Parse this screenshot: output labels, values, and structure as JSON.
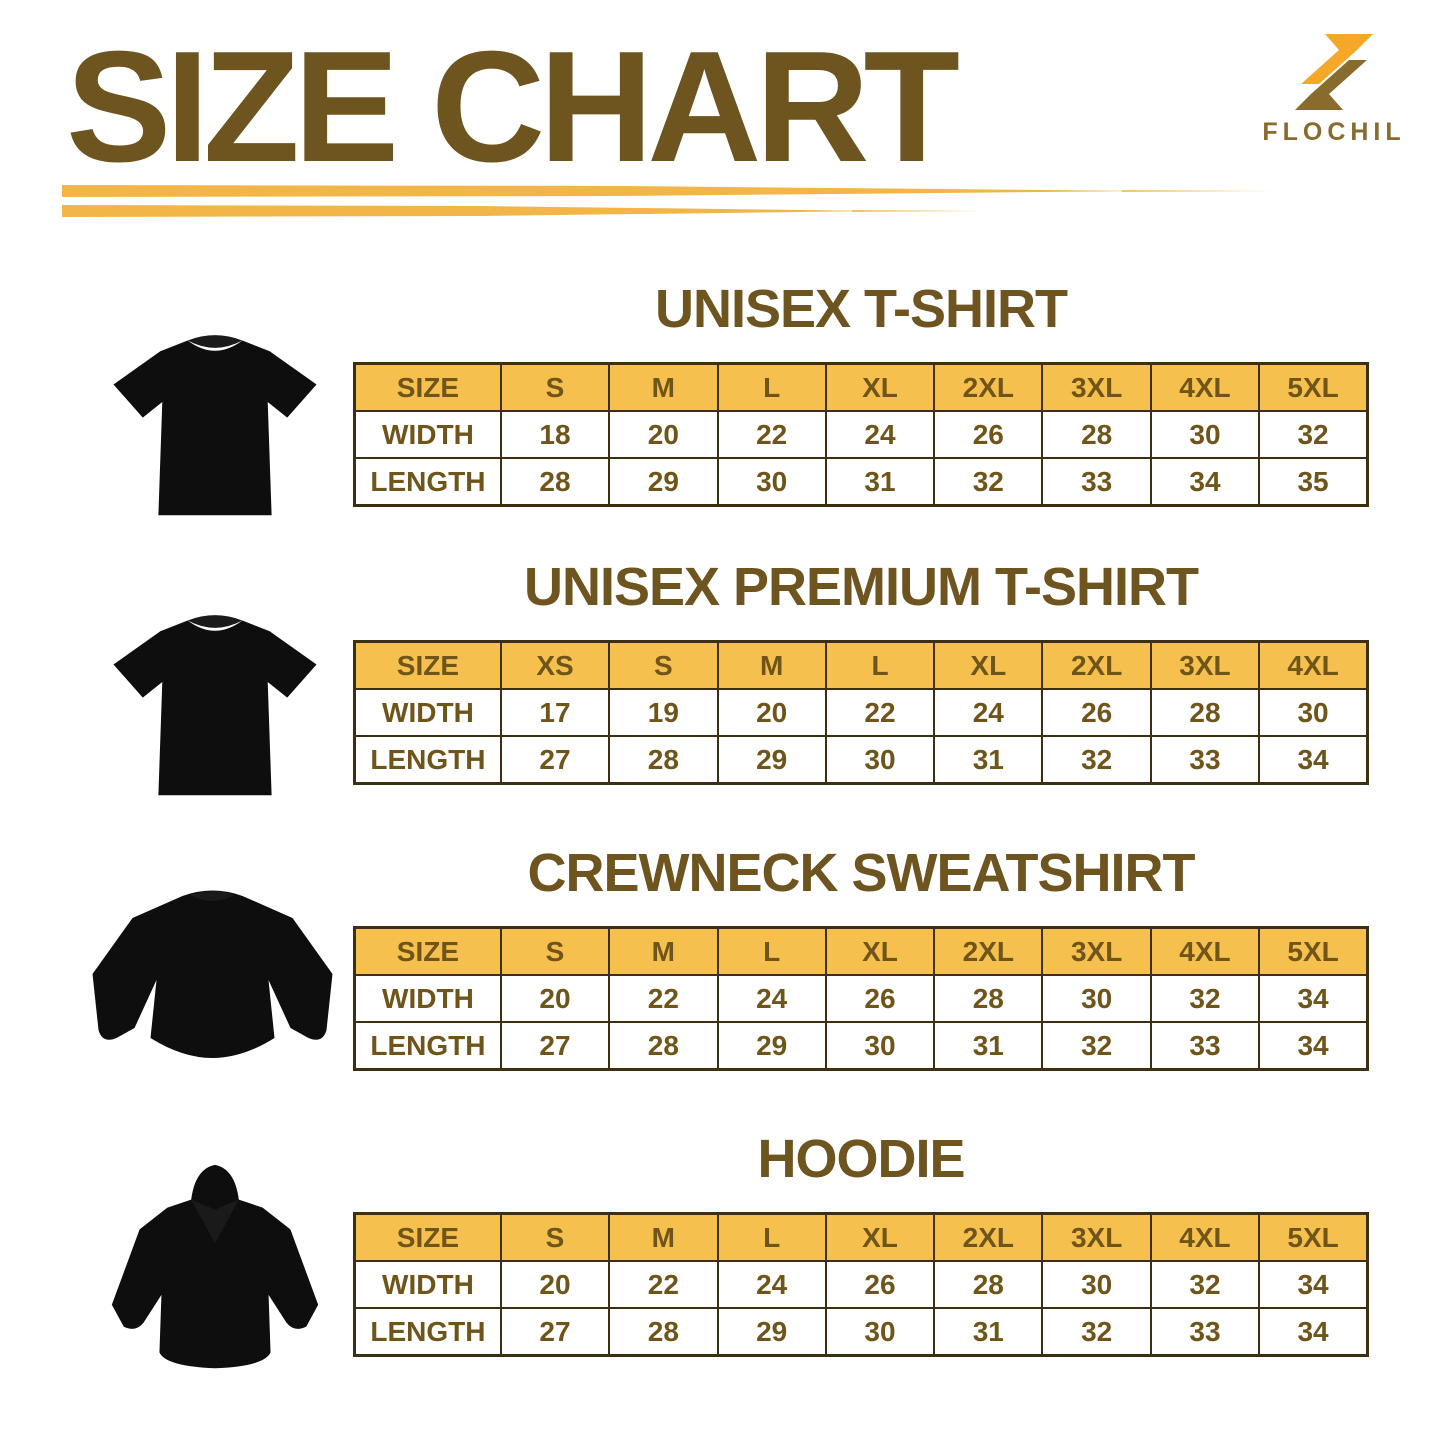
{
  "header": {
    "title": "SIZE CHART",
    "brand": "FLOCHIL"
  },
  "colors": {
    "title_brown": "#6E541F",
    "text_brown": "#6F5519",
    "header_gold": "#F6C04F",
    "line_gold": "#F2B648",
    "logo_gold": "#F5A828",
    "logo_brown": "#8A6B2E",
    "border_brown": "#3C2F12",
    "garment_black": "#0E0E0E"
  },
  "sections": [
    {
      "title": "UNISEX T-SHIRT",
      "garment": "t-shirt",
      "table": {
        "header": [
          "SIZE",
          "S",
          "M",
          "L",
          "XL",
          "2XL",
          "3XL",
          "4XL",
          "5XL"
        ],
        "rows": [
          {
            "label": "WIDTH",
            "values": [
              "18",
              "20",
              "22",
              "24",
              "26",
              "28",
              "30",
              "32"
            ]
          },
          {
            "label": "LENGTH",
            "values": [
              "28",
              "29",
              "30",
              "31",
              "32",
              "33",
              "34",
              "35"
            ]
          }
        ]
      }
    },
    {
      "title": "UNISEX PREMIUM T-SHIRT",
      "garment": "t-shirt",
      "table": {
        "header": [
          "SIZE",
          "XS",
          "S",
          "M",
          "L",
          "XL",
          "2XL",
          "3XL",
          "4XL"
        ],
        "rows": [
          {
            "label": "WIDTH",
            "values": [
              "17",
              "19",
              "20",
              "22",
              "24",
              "26",
              "28",
              "30"
            ]
          },
          {
            "label": "LENGTH",
            "values": [
              "27",
              "28",
              "29",
              "30",
              "31",
              "32",
              "33",
              "34"
            ]
          }
        ]
      }
    },
    {
      "title": "CREWNECK SWEATSHIRT",
      "garment": "crewneck-sweatshirt",
      "table": {
        "header": [
          "SIZE",
          "S",
          "M",
          "L",
          "XL",
          "2XL",
          "3XL",
          "4XL",
          "5XL"
        ],
        "rows": [
          {
            "label": "WIDTH",
            "values": [
              "20",
              "22",
              "24",
              "26",
              "28",
              "30",
              "32",
              "34"
            ]
          },
          {
            "label": "LENGTH",
            "values": [
              "27",
              "28",
              "29",
              "30",
              "31",
              "32",
              "33",
              "34"
            ]
          }
        ]
      }
    },
    {
      "title": "HOODIE",
      "garment": "hoodie",
      "table": {
        "header": [
          "SIZE",
          "S",
          "M",
          "L",
          "XL",
          "2XL",
          "3XL",
          "4XL",
          "5XL"
        ],
        "rows": [
          {
            "label": "WIDTH",
            "values": [
              "20",
              "22",
              "24",
              "26",
              "28",
              "30",
              "32",
              "34"
            ]
          },
          {
            "label": "LENGTH",
            "values": [
              "27",
              "28",
              "29",
              "30",
              "31",
              "32",
              "33",
              "34"
            ]
          }
        ]
      }
    }
  ]
}
